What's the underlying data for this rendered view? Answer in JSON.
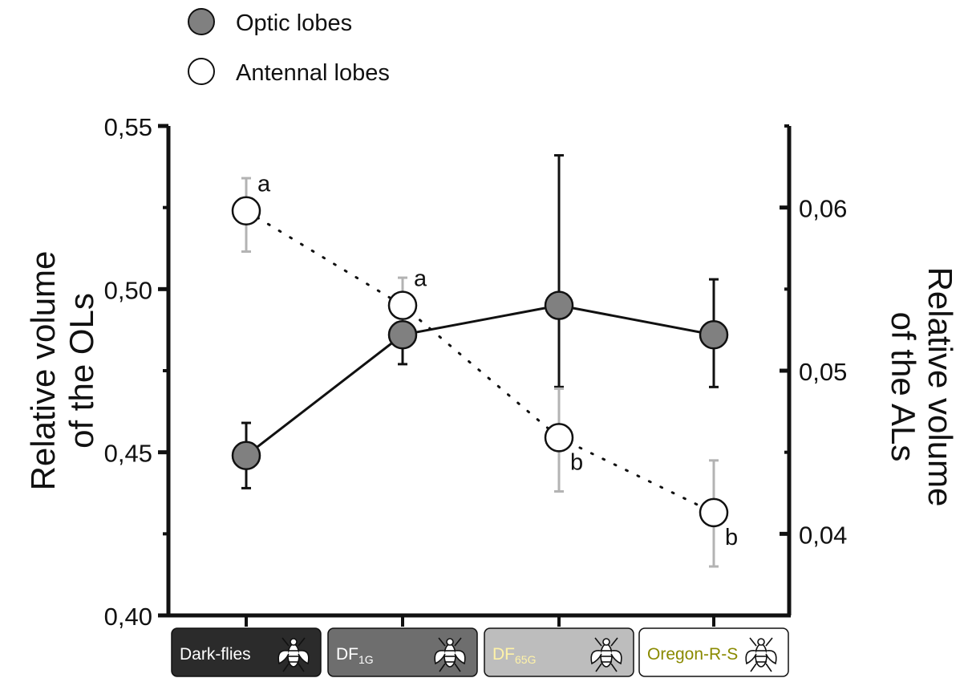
{
  "chart_data": {
    "type": "line",
    "categories": [
      "Dark-flies",
      "DF1G",
      "DF65G",
      "Oregon-R-S"
    ],
    "category_labels": [
      {
        "main": "Dark-flies",
        "sub": ""
      },
      {
        "main": "DF",
        "sub": "1G"
      },
      {
        "main": "DF",
        "sub": "65G"
      },
      {
        "main": "Oregon-R-S",
        "sub": ""
      }
    ],
    "category_box_colors": [
      "#2b2b2b",
      "#6e6e6e",
      "#bdbdbd",
      "#ffffff"
    ],
    "category_text_colors": [
      "#ffffff",
      "#ffffff",
      "#fff3a8",
      "#8a8a00"
    ],
    "ylabel_left": [
      "Relative volume",
      "of the OLs"
    ],
    "ylabel_right": [
      "Relative volume",
      "of the ALs"
    ],
    "ylim_left": [
      0.4,
      0.55
    ],
    "ylim_right": [
      0.035,
      0.065
    ],
    "yticks_left": [
      {
        "value": 0.4,
        "label": "0,40"
      },
      {
        "value": 0.45,
        "label": "0,45"
      },
      {
        "value": 0.5,
        "label": "0,50"
      },
      {
        "value": 0.55,
        "label": "0,55"
      }
    ],
    "yticks_right": [
      {
        "value": 0.04,
        "label": "0,04"
      },
      {
        "value": 0.05,
        "label": "0,05"
      },
      {
        "value": 0.06,
        "label": "0,06"
      }
    ],
    "legend": [
      {
        "label": "Optic lobes",
        "fill": "#808080"
      },
      {
        "label": "Antennal lobes",
        "fill": "#ffffff"
      }
    ],
    "series": [
      {
        "name": "Optic lobes",
        "axis": "left",
        "values": [
          0.449,
          0.486,
          0.495,
          0.486
        ],
        "err_low": [
          0.439,
          0.477,
          0.47,
          0.47
        ],
        "err_high": [
          0.459,
          0.496,
          0.541,
          0.503
        ],
        "marker_fill": "#808080",
        "error_color": "#111111",
        "line_style": "solid",
        "annotations": [
          "",
          "",
          "",
          ""
        ]
      },
      {
        "name": "Antennal lobes",
        "axis": "right",
        "values": [
          0.0598,
          0.054,
          0.0459,
          0.0413
        ],
        "err_low": [
          0.0573,
          0.0518,
          0.0426,
          0.038
        ],
        "err_high": [
          0.0618,
          0.0557,
          0.0489,
          0.0445
        ],
        "marker_fill": "#ffffff",
        "error_color": "#b3b3b3",
        "line_style": "dotted",
        "annotations": [
          "a",
          "a",
          "b",
          "b"
        ]
      }
    ]
  }
}
